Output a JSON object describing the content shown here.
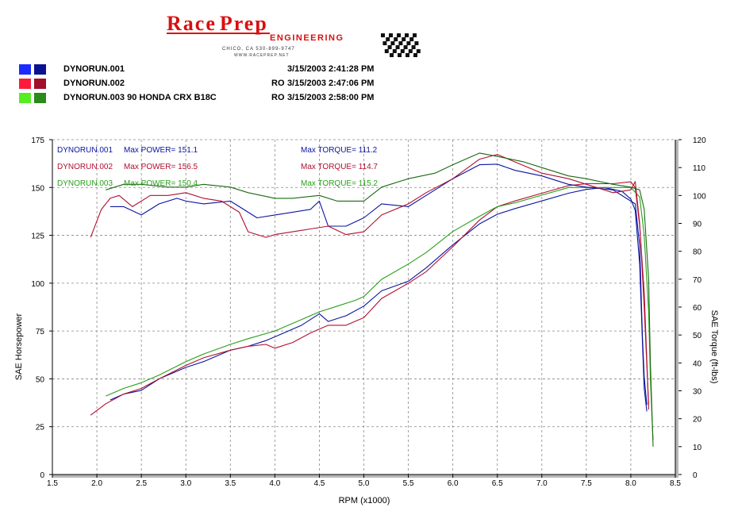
{
  "brand": {
    "name_first": "Race",
    "name_second": "Prep",
    "subtitle": "ENGINEERING",
    "contact_line1": "CHICO, CA  530-899-9747",
    "contact_line2": "WWW.RACEPREP.NET"
  },
  "runs": [
    {
      "name": "DYNORUN.001",
      "prefix": "",
      "date": "3/15/2003 2:41:28 PM",
      "color_light": "#1a2cff",
      "color_dark": "#0a1290"
    },
    {
      "name": "DYNORUN.002",
      "prefix": "RO",
      "date": "3/15/2003 2:47:06 PM",
      "color_light": "#ff1a3c",
      "color_dark": "#a0102a"
    },
    {
      "name": "DYNORUN.003   90 HONDA CRX B18C",
      "prefix": "RO",
      "date": "3/15/2003 2:58:00 PM",
      "color_light": "#55ee22",
      "color_dark": "#2a8a1a"
    }
  ],
  "chart_data": {
    "type": "line",
    "xlabel": "RPM (x1000)",
    "ylabel": "SAE Horsepower",
    "y2label": "SAE Torque (ft-lbs)",
    "xlim": [
      1.5,
      8.5
    ],
    "ylim": [
      0,
      175
    ],
    "y2lim": [
      0,
      120
    ],
    "x_ticks": [
      "1.5",
      "2.0",
      "2.5",
      "3.0",
      "3.5",
      "4.0",
      "4.5",
      "5.0",
      "5.5",
      "6.0",
      "6.5",
      "7.0",
      "7.5",
      "8.0",
      "8.5"
    ],
    "y_ticks": [
      "0",
      "25",
      "50",
      "75",
      "100",
      "125",
      "150",
      "175"
    ],
    "y2_ticks": [
      "0",
      "10",
      "20",
      "30",
      "40",
      "50",
      "60",
      "70",
      "80",
      "90",
      "100",
      "110",
      "120"
    ],
    "grid": true,
    "annotations": [
      {
        "run": "DYNORUN.001",
        "power_label": "Max POWER= 151.1",
        "torque_label": "Max TORQUE= 111.2",
        "color": "#0a14a0"
      },
      {
        "run": "DYNORUN.002",
        "power_label": "Max POWER= 156.5",
        "torque_label": "Max TORQUE= 114.7",
        "color": "#b01030"
      },
      {
        "run": "DYNORUN.003",
        "power_label": "Max POWER= 150.4",
        "torque_label": "Max TORQUE= 115.2",
        "color": "#28a018"
      }
    ],
    "series": [
      {
        "name": "DYNORUN.001",
        "axis": "hp",
        "color": "#0a14a0",
        "points": [
          [
            2.15,
            39
          ],
          [
            2.3,
            42
          ],
          [
            2.5,
            44
          ],
          [
            2.7,
            50
          ],
          [
            3.0,
            56
          ],
          [
            3.2,
            59
          ],
          [
            3.5,
            65
          ],
          [
            3.7,
            67
          ],
          [
            3.9,
            70
          ],
          [
            4.1,
            74
          ],
          [
            4.3,
            78
          ],
          [
            4.5,
            84
          ],
          [
            4.6,
            80
          ],
          [
            4.8,
            83
          ],
          [
            5.0,
            88
          ],
          [
            5.2,
            96
          ],
          [
            5.5,
            101
          ],
          [
            5.7,
            108
          ],
          [
            6.0,
            120
          ],
          [
            6.3,
            131
          ],
          [
            6.5,
            136
          ],
          [
            6.7,
            139
          ],
          [
            7.0,
            143
          ],
          [
            7.3,
            147
          ],
          [
            7.5,
            149
          ],
          [
            7.7,
            150
          ],
          [
            7.9,
            148
          ],
          [
            8.0,
            144
          ],
          [
            8.05,
            138
          ],
          [
            8.1,
            110
          ],
          [
            8.13,
            70
          ],
          [
            8.15,
            45
          ],
          [
            8.18,
            33
          ]
        ]
      },
      {
        "name": "DYNORUN.002",
        "axis": "hp",
        "color": "#b01030",
        "points": [
          [
            1.93,
            31
          ],
          [
            2.1,
            37
          ],
          [
            2.3,
            42
          ],
          [
            2.5,
            45
          ],
          [
            2.7,
            50
          ],
          [
            3.0,
            57
          ],
          [
            3.2,
            61
          ],
          [
            3.5,
            65
          ],
          [
            3.7,
            67
          ],
          [
            3.9,
            68
          ],
          [
            4.0,
            66
          ],
          [
            4.2,
            69
          ],
          [
            4.4,
            74
          ],
          [
            4.6,
            78
          ],
          [
            4.8,
            78
          ],
          [
            5.0,
            82
          ],
          [
            5.2,
            92
          ],
          [
            5.5,
            100
          ],
          [
            5.7,
            106
          ],
          [
            6.0,
            119
          ],
          [
            6.3,
            133
          ],
          [
            6.5,
            140
          ],
          [
            6.7,
            143
          ],
          [
            7.0,
            147
          ],
          [
            7.3,
            151
          ],
          [
            7.5,
            152
          ],
          [
            7.8,
            152
          ],
          [
            8.0,
            153
          ],
          [
            8.05,
            150
          ],
          [
            8.1,
            130
          ],
          [
            8.15,
            95
          ],
          [
            8.18,
            60
          ],
          [
            8.2,
            34
          ]
        ]
      },
      {
        "name": "DYNORUN.003",
        "axis": "hp",
        "color": "#28a018",
        "points": [
          [
            2.1,
            41
          ],
          [
            2.3,
            45
          ],
          [
            2.5,
            48
          ],
          [
            2.7,
            52
          ],
          [
            3.0,
            59
          ],
          [
            3.2,
            63
          ],
          [
            3.5,
            68
          ],
          [
            3.7,
            71
          ],
          [
            4.0,
            75
          ],
          [
            4.2,
            79
          ],
          [
            4.5,
            85
          ],
          [
            4.7,
            88
          ],
          [
            4.9,
            91
          ],
          [
            5.0,
            93
          ],
          [
            5.2,
            102
          ],
          [
            5.5,
            110
          ],
          [
            5.7,
            116
          ],
          [
            6.0,
            127
          ],
          [
            6.3,
            135
          ],
          [
            6.5,
            140
          ],
          [
            6.7,
            142
          ],
          [
            7.0,
            146
          ],
          [
            7.3,
            150
          ],
          [
            7.5,
            150
          ],
          [
            7.8,
            150
          ],
          [
            8.0,
            150
          ],
          [
            8.1,
            145
          ],
          [
            8.15,
            125
          ],
          [
            8.2,
            85
          ],
          [
            8.22,
            50
          ],
          [
            8.24,
            28
          ],
          [
            8.25,
            18
          ]
        ]
      },
      {
        "name": "DYNORUN.001",
        "axis": "torque",
        "color": "#0a14a0",
        "points": [
          [
            2.15,
            96
          ],
          [
            2.3,
            96
          ],
          [
            2.5,
            93
          ],
          [
            2.7,
            97
          ],
          [
            2.9,
            99
          ],
          [
            3.0,
            98
          ],
          [
            3.2,
            97
          ],
          [
            3.5,
            98
          ],
          [
            3.6,
            96
          ],
          [
            3.8,
            92
          ],
          [
            4.0,
            93
          ],
          [
            4.2,
            94
          ],
          [
            4.4,
            95
          ],
          [
            4.5,
            98
          ],
          [
            4.6,
            89
          ],
          [
            4.8,
            89
          ],
          [
            5.0,
            92
          ],
          [
            5.2,
            97
          ],
          [
            5.5,
            96
          ],
          [
            5.7,
            100
          ],
          [
            6.0,
            106
          ],
          [
            6.3,
            111
          ],
          [
            6.5,
            111.2
          ],
          [
            6.7,
            109
          ],
          [
            7.0,
            107
          ],
          [
            7.3,
            104
          ],
          [
            7.5,
            103
          ],
          [
            7.8,
            102
          ],
          [
            8.0,
            98
          ],
          [
            8.05,
            97
          ],
          [
            8.1,
            82
          ],
          [
            8.13,
            50
          ],
          [
            8.15,
            35
          ],
          [
            8.18,
            25
          ]
        ]
      },
      {
        "name": "DYNORUN.002",
        "axis": "torque",
        "color": "#b01030",
        "points": [
          [
            1.93,
            85
          ],
          [
            2.05,
            95
          ],
          [
            2.15,
            99
          ],
          [
            2.25,
            100
          ],
          [
            2.4,
            96
          ],
          [
            2.6,
            100
          ],
          [
            2.8,
            100
          ],
          [
            3.0,
            101
          ],
          [
            3.2,
            99
          ],
          [
            3.4,
            98
          ],
          [
            3.6,
            94
          ],
          [
            3.7,
            87
          ],
          [
            3.9,
            85
          ],
          [
            4.0,
            86
          ],
          [
            4.2,
            87
          ],
          [
            4.4,
            88
          ],
          [
            4.6,
            89
          ],
          [
            4.8,
            86
          ],
          [
            5.0,
            87
          ],
          [
            5.2,
            93
          ],
          [
            5.5,
            97
          ],
          [
            5.7,
            101
          ],
          [
            6.0,
            106
          ],
          [
            6.3,
            113
          ],
          [
            6.5,
            114.7
          ],
          [
            6.7,
            112
          ],
          [
            7.0,
            108
          ],
          [
            7.3,
            106
          ],
          [
            7.6,
            103
          ],
          [
            7.8,
            101
          ],
          [
            8.0,
            102
          ],
          [
            8.05,
            105
          ],
          [
            8.1,
            90
          ],
          [
            8.15,
            60
          ],
          [
            8.2,
            25
          ]
        ]
      },
      {
        "name": "DYNORUN.003",
        "axis": "torque",
        "color": "#1a6a10",
        "points": [
          [
            2.1,
            102
          ],
          [
            2.3,
            104
          ],
          [
            2.5,
            104
          ],
          [
            2.8,
            103
          ],
          [
            3.0,
            103
          ],
          [
            3.2,
            104
          ],
          [
            3.5,
            103
          ],
          [
            3.7,
            101
          ],
          [
            4.0,
            99
          ],
          [
            4.2,
            99
          ],
          [
            4.5,
            100
          ],
          [
            4.7,
            98
          ],
          [
            5.0,
            98
          ],
          [
            5.2,
            103
          ],
          [
            5.5,
            106
          ],
          [
            5.8,
            108
          ],
          [
            6.0,
            111
          ],
          [
            6.3,
            115.2
          ],
          [
            6.5,
            114
          ],
          [
            6.8,
            112
          ],
          [
            7.0,
            110
          ],
          [
            7.3,
            107
          ],
          [
            7.5,
            106
          ],
          [
            7.8,
            104
          ],
          [
            8.0,
            103
          ],
          [
            8.1,
            102
          ],
          [
            8.15,
            95
          ],
          [
            8.2,
            70
          ],
          [
            8.22,
            40
          ],
          [
            8.25,
            10
          ]
        ]
      }
    ]
  }
}
